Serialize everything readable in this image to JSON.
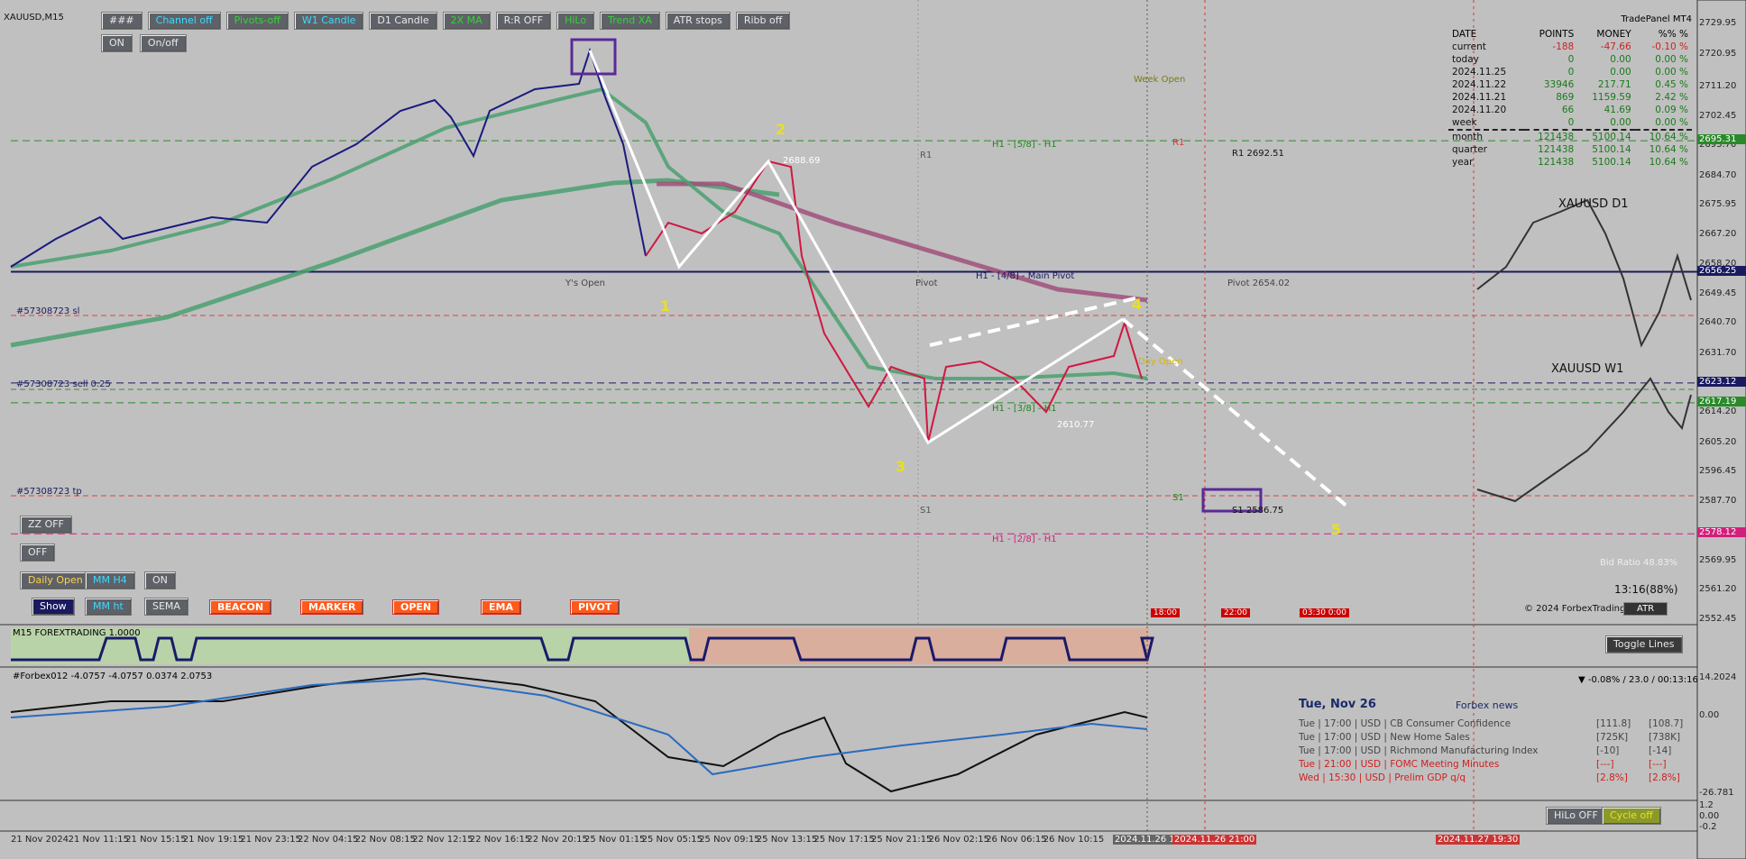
{
  "symbol": "XAUUSD,M15",
  "toolbar_row1": [
    "###",
    "Channel off",
    "Pivots-off",
    "W1 Candle",
    "D1 Candle",
    "2X MA",
    "R:R OFF",
    "HiLo",
    "Trend XA",
    "ATR stops",
    "Ribb off"
  ],
  "toolbar_row2": [
    "ON",
    "On/off"
  ],
  "left_buttons": [
    "ZZ OFF",
    "OFF",
    "Daily Open",
    "MM H4",
    "ON",
    "Show",
    "MM ht",
    "SEMA"
  ],
  "object_buttons": [
    "BEACON",
    "MARKER",
    "OPEN",
    "EMA",
    "PIVOT"
  ],
  "price_axis": [
    "2729.95",
    "2720.95",
    "2711.20",
    "2702.45",
    "2693.70",
    "2684.70",
    "2675.95",
    "2667.20",
    "2658.20",
    "2649.45",
    "2640.70",
    "2631.70",
    "2614.20",
    "2605.20",
    "2596.45",
    "2587.70",
    "2569.95",
    "2561.20",
    "2552.45"
  ],
  "price_markers": [
    "2695.31",
    "2656.25",
    "2623.12",
    "2617.19",
    "2578.12"
  ],
  "chart_labels": [
    "Week Open",
    "R1",
    "H1 - [5/8] - H1",
    "R1",
    "R1 2692.51",
    "2688.69",
    "Y's Open",
    "Pivot",
    "H1 - [4/8] - Main Pivot",
    "Pivot 2654.02",
    "#57308723 sl",
    "#57308723 sell 0.25",
    "#57308723 tp",
    "Day Open",
    "H1 - [3/8] - H1",
    "2610.77",
    "S1",
    "S1",
    "S1 2586.75",
    "H1 - [2/8] - H1",
    "XAUUSD D1",
    "XAUUSD W1",
    "Bid Ratio 48.83%",
    "13:16(88%)",
    "© 2024 ForbexTrading",
    "ATR"
  ],
  "wave_labels": [
    "1",
    "2",
    "3",
    "4",
    "5"
  ],
  "time_markers": [
    "18:00",
    "22:00",
    "03:30 0:00"
  ],
  "trade_panel": {
    "title": "TradePanel MT4",
    "headers": [
      "DATE",
      "POINTS",
      "MONEY",
      "%% %"
    ],
    "rows": [
      [
        "current",
        "-188",
        "-47.66",
        "-0.10 %"
      ],
      [
        "today",
        "0",
        "0.00",
        "0.00 %"
      ],
      [
        "2024.11.25",
        "0",
        "0.00",
        "0.00 %"
      ],
      [
        "2024.11.22",
        "33946",
        "217.71",
        "0.45 %"
      ],
      [
        "2024.11.21",
        "869",
        "1159.59",
        "2.42 %"
      ],
      [
        "2024.11.20",
        "66",
        "41.69",
        "0.09 %"
      ],
      [
        "week",
        "0",
        "0.00",
        "0.00 %"
      ],
      [
        "month",
        "121438",
        "5100.14",
        "10.64 %"
      ],
      [
        "quarter",
        "121438",
        "5100.14",
        "10.64 %"
      ],
      [
        "year",
        "121438",
        "5100.14",
        "10.64 %"
      ]
    ]
  },
  "indicator1": {
    "label": "M15 FOREXTRADING 1.0000",
    "button": "Toggle Lines"
  },
  "indicator2": {
    "label": "#Forbex012 -4.0757 -4.0757 0.0374 2.0753",
    "info": "▼ -0.08% / 23.0 / 00:13:16",
    "axis": [
      "14.2024",
      "0.00",
      "-26.781"
    ]
  },
  "indicator3": {
    "axis": [
      "1.2",
      "0.00",
      "-0.2"
    ],
    "buttons": [
      "HiLo OFF",
      "Cycle off"
    ]
  },
  "news": {
    "date": "Tue, Nov 26",
    "title": "Forbex news",
    "rows": [
      [
        "Tue  |  17:00  |  USD  |  CB Consumer Confidence",
        "[111.8]",
        "[108.7]"
      ],
      [
        "Tue  |  17:00  |  USD  |  New Home Sales",
        "[725K]",
        "[738K]"
      ],
      [
        "Tue  |  17:00  |  USD  |  Richmond Manufacturing Index",
        "[-10]",
        "[-14]"
      ],
      [
        "Tue  |  21:00  |  USD  |  FOMC Meeting Minutes",
        "[---]",
        "[---]"
      ],
      [
        "Wed  |  15:30  |  USD  |  Prelim GDP q/q",
        "[2.8%]",
        "[2.8%]"
      ]
    ]
  },
  "date_axis": [
    "21 Nov 2024",
    "21 Nov 11:15",
    "21 Nov 15:15",
    "21 Nov 19:15",
    "21 Nov 23:15",
    "22 Nov 04:15",
    "22 Nov 08:15",
    "22 Nov 12:15",
    "22 Nov 16:15",
    "22 Nov 20:15",
    "25 Nov 01:15",
    "25 Nov 05:15",
    "25 Nov 09:15",
    "25 Nov 13:15",
    "25 Nov 17:15",
    "25 Nov 21:15",
    "26 Nov 02:15",
    "26 Nov 06:15",
    "26 Nov 10:15"
  ],
  "date_markers": [
    "2024.11.26 17",
    "2024.11.26 21:00",
    "2024.11.27 19:30"
  ]
}
